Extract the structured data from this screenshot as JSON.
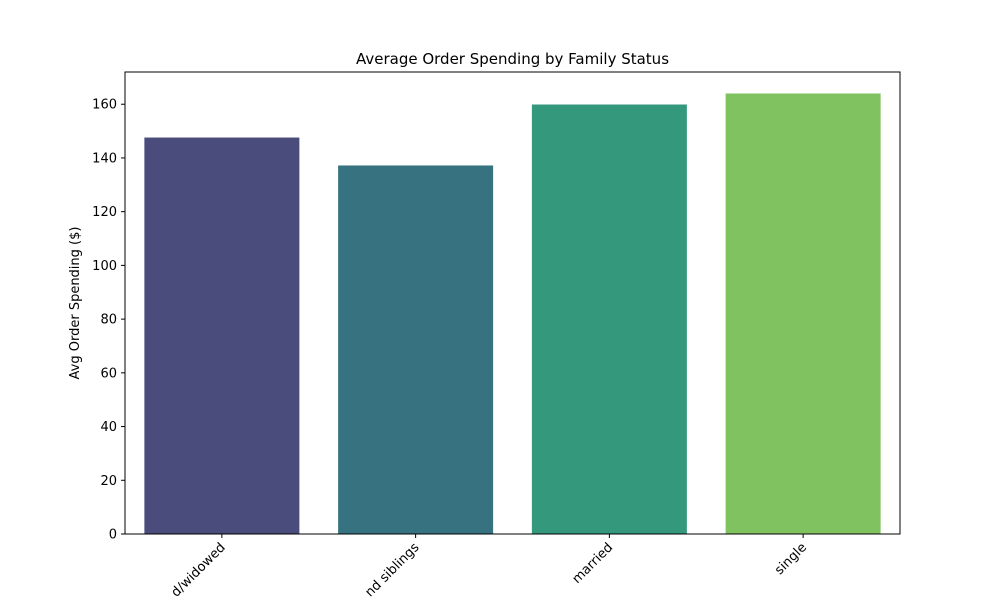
{
  "chart_data": {
    "type": "bar",
    "title": "Average Order Spending by Family Status",
    "xlabel": "",
    "ylabel": "Avg Order Spending ($)",
    "categories": [
      "d/widowed",
      "nd siblings",
      "married",
      "single"
    ],
    "values": [
      147.6,
      137.2,
      159.9,
      164.0
    ],
    "colors": [
      "#4a4c7c",
      "#367280",
      "#34997c",
      "#80c260"
    ],
    "ylim": [
      0,
      172
    ],
    "yticks": [
      0,
      20,
      40,
      60,
      80,
      100,
      120,
      140,
      160
    ],
    "grid": false,
    "legend": "none"
  }
}
